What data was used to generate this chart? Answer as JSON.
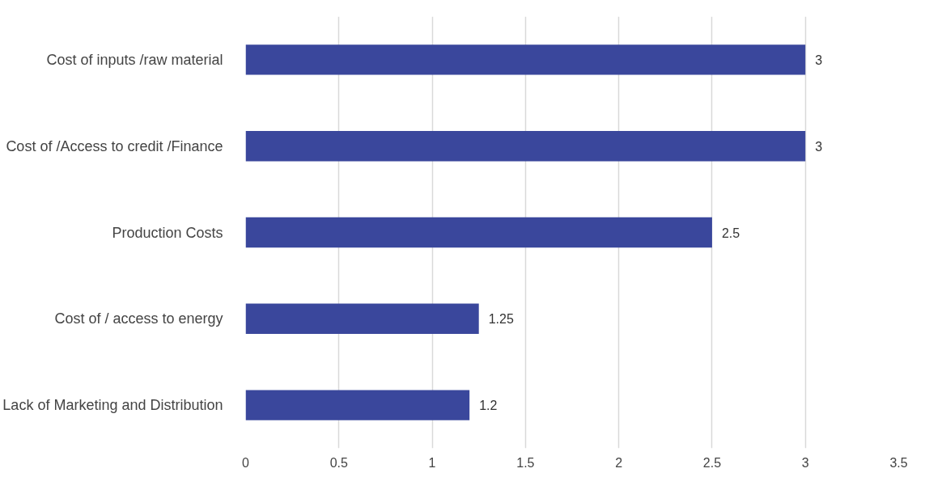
{
  "chart_data": {
    "type": "bar",
    "orientation": "horizontal",
    "categories": [
      "Cost of inputs /raw material",
      "Cost of /Access to credit /Finance",
      "Production Costs",
      "Cost of / access to energy",
      "Lack of Marketing and Distribution"
    ],
    "values": [
      3,
      3,
      2.5,
      1.25,
      1.2
    ],
    "color": "#3a479c",
    "xlim": [
      0,
      3.5
    ],
    "xticks": [
      0,
      0.5,
      1,
      1.5,
      2,
      2.5,
      3,
      3.5
    ],
    "grid": "x",
    "data_labels": true
  }
}
